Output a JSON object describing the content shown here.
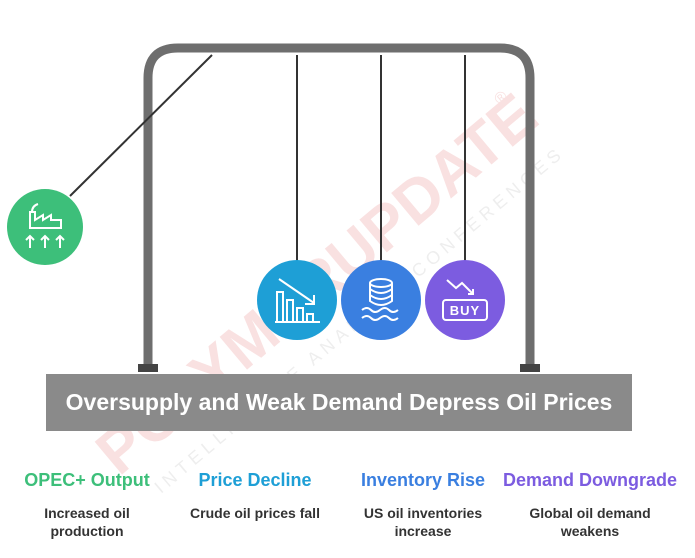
{
  "title": "Oversupply and Weak Demand Depress Oil Prices",
  "watermark": {
    "brand": "POLYMERUPDATE",
    "mark": "®",
    "tagline": "INTELLIGENCE ANALYSIS CONFERENCES"
  },
  "items": [
    {
      "label": "OPEC+ Output",
      "description": [
        "Increased oil",
        "production"
      ]
    },
    {
      "label": "Price Decline",
      "description": [
        "Crude oil prices fall"
      ]
    },
    {
      "label": "Inventory Rise",
      "description": [
        "US oil inventories",
        "increase"
      ]
    },
    {
      "label": "Demand Downgrade",
      "description": [
        "Global oil demand",
        "weakens"
      ],
      "icon_text": "BUY"
    }
  ]
}
